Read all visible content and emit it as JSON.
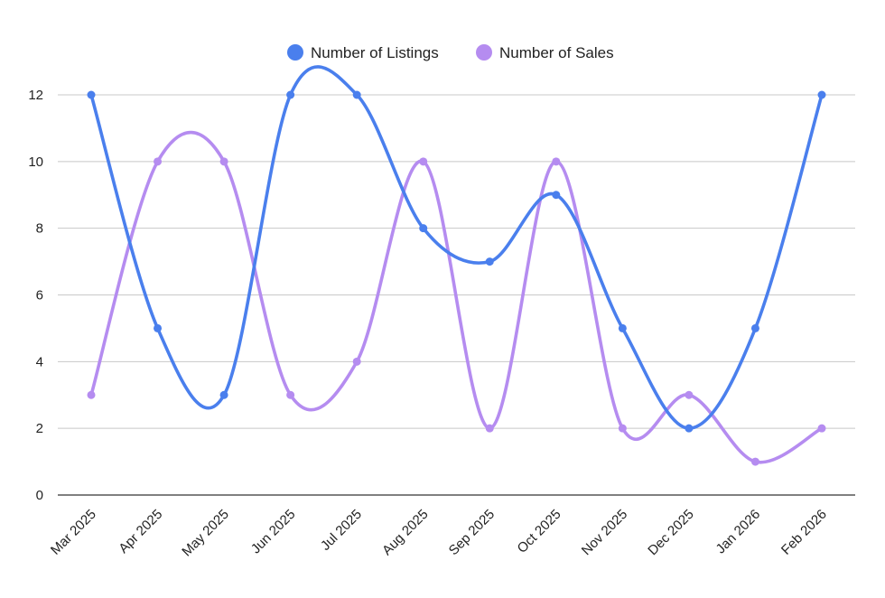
{
  "chart_data": {
    "type": "line",
    "title": "",
    "xlabel": "",
    "ylabel": "",
    "categories": [
      "Mar 2025",
      "Apr 2025",
      "May 2025",
      "Jun 2025",
      "Jul 2025",
      "Aug 2025",
      "Sep 2025",
      "Oct 2025",
      "Nov 2025",
      "Dec 2025",
      "Jan 2026",
      "Feb 2026"
    ],
    "series": [
      {
        "name": "Number of Listings",
        "color": "#4a7fed",
        "values": [
          12,
          5,
          3,
          12,
          12,
          8,
          7,
          9,
          5,
          2,
          5,
          12
        ]
      },
      {
        "name": "Number of Sales",
        "color": "#b58cf0",
        "values": [
          3,
          10,
          10,
          3,
          4,
          10,
          2,
          10,
          2,
          3,
          1,
          2
        ]
      }
    ],
    "ylim": [
      0,
      12
    ],
    "yticks": [
      "0",
      "2",
      "4",
      "6",
      "8",
      "10",
      "12"
    ],
    "grid": true,
    "smooth": true,
    "legend": "top-center"
  }
}
